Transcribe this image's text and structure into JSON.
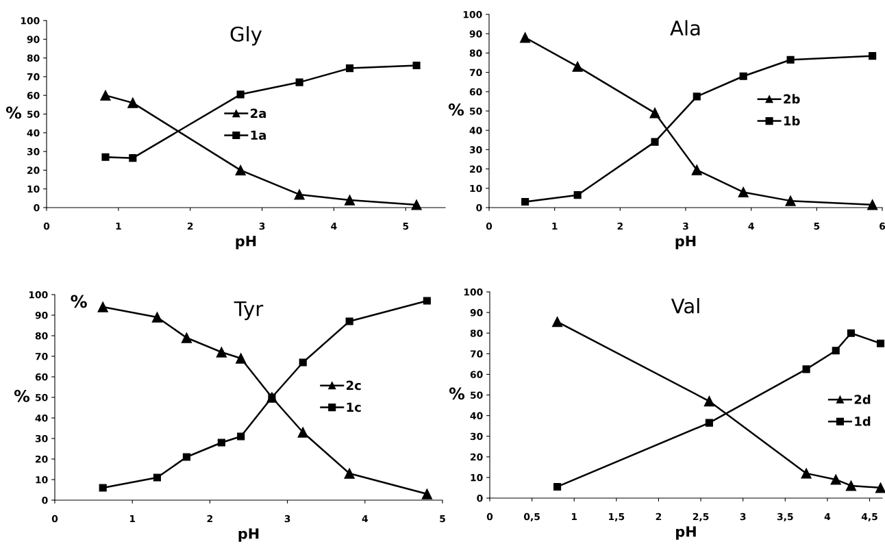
{
  "chart_data": [
    {
      "type": "line",
      "title": "Gly",
      "xlabel": "pH",
      "ylabel": "%",
      "xlim": [
        0,
        5.55
      ],
      "ylim": [
        0,
        100
      ],
      "xticks": [
        0,
        1,
        2,
        3,
        4,
        5
      ],
      "yticks": [
        0,
        10,
        20,
        30,
        40,
        50,
        60,
        70,
        80,
        90,
        100
      ],
      "legend": "center",
      "grid": false,
      "series": [
        {
          "name": "2a",
          "color": "#000000",
          "marker": "triangle",
          "x": [
            0.82,
            1.2,
            2.7,
            3.52,
            4.22,
            5.15
          ],
          "values": [
            60,
            56,
            20,
            7,
            4,
            1.5
          ]
        },
        {
          "name": "1a",
          "color": "#000000",
          "marker": "square",
          "x": [
            0.82,
            1.2,
            2.7,
            3.52,
            4.22,
            5.15
          ],
          "values": [
            27,
            26.5,
            60.5,
            67,
            74.5,
            76
          ]
        }
      ]
    },
    {
      "type": "line",
      "title": "Ala",
      "xlabel": "pH",
      "ylabel": "%",
      "xlim": [
        0,
        6
      ],
      "ylim": [
        0,
        100
      ],
      "xticks": [
        0,
        1,
        2,
        3,
        4,
        5,
        6
      ],
      "yticks": [
        0,
        10,
        20,
        30,
        40,
        50,
        60,
        70,
        80,
        90,
        100
      ],
      "legend": "center right",
      "grid": false,
      "series": [
        {
          "name": "2b",
          "color": "#000000",
          "marker": "triangle",
          "x": [
            0.55,
            1.35,
            2.53,
            3.17,
            3.88,
            4.6,
            5.85
          ],
          "values": [
            88,
            73,
            49,
            19.5,
            8,
            3.5,
            1.5
          ]
        },
        {
          "name": "1b",
          "color": "#000000",
          "marker": "square",
          "x": [
            0.55,
            1.35,
            2.53,
            3.17,
            3.88,
            4.6,
            5.85
          ],
          "values": [
            3,
            6.5,
            34,
            57.5,
            68,
            76.5,
            78.5
          ]
        }
      ]
    },
    {
      "type": "line",
      "title": "Tyr",
      "xlabel": "pH",
      "ylabel": "%",
      "annotations": [
        "%"
      ],
      "xlim": [
        0,
        5
      ],
      "ylim": [
        0,
        100
      ],
      "xticks": [
        0,
        1,
        2,
        3,
        4,
        5
      ],
      "yticks": [
        0,
        10,
        20,
        30,
        40,
        50,
        60,
        70,
        80,
        90,
        100
      ],
      "legend": "center right",
      "grid": false,
      "series": [
        {
          "name": "2c",
          "color": "#000000",
          "marker": "triangle",
          "x": [
            0.62,
            1.32,
            1.7,
            2.15,
            2.4,
            2.8,
            3.2,
            3.8,
            4.8
          ],
          "values": [
            94,
            89,
            79,
            72,
            69,
            50,
            33,
            13,
            3
          ]
        },
        {
          "name": "1c",
          "color": "#000000",
          "marker": "square",
          "x": [
            0.62,
            1.32,
            1.7,
            2.15,
            2.4,
            2.8,
            3.2,
            3.8,
            4.8
          ],
          "values": [
            6,
            11,
            21,
            28,
            31,
            50,
            67,
            87,
            97
          ]
        }
      ]
    },
    {
      "type": "line",
      "title": "Val",
      "xlabel": "pH",
      "ylabel": "%",
      "xlim": [
        0,
        4.65
      ],
      "ylim": [
        0,
        100
      ],
      "xticks": [
        0,
        {
          "value": 0.5,
          "label": "0,5"
        },
        1,
        {
          "value": 1.5,
          "label": "1,5"
        },
        2,
        {
          "value": 2.5,
          "label": "2,5"
        },
        3,
        {
          "value": 3.5,
          "label": "3,5"
        },
        4,
        {
          "value": 4.5,
          "label": "4,5"
        }
      ],
      "yticks": [
        0,
        10,
        20,
        30,
        40,
        50,
        60,
        70,
        80,
        90,
        100
      ],
      "legend": "right",
      "grid": false,
      "series": [
        {
          "name": "2d",
          "color": "#000000",
          "marker": "triangle",
          "x": [
            0.8,
            2.6,
            3.75,
            4.1,
            4.28,
            4.63
          ],
          "values": [
            85.5,
            47,
            12,
            9,
            6,
            5
          ]
        },
        {
          "name": "1d",
          "color": "#000000",
          "marker": "square",
          "x": [
            0.8,
            2.6,
            3.75,
            4.1,
            4.28,
            4.63
          ],
          "values": [
            5.5,
            36.5,
            62.5,
            71.5,
            80,
            75
          ]
        }
      ]
    }
  ]
}
